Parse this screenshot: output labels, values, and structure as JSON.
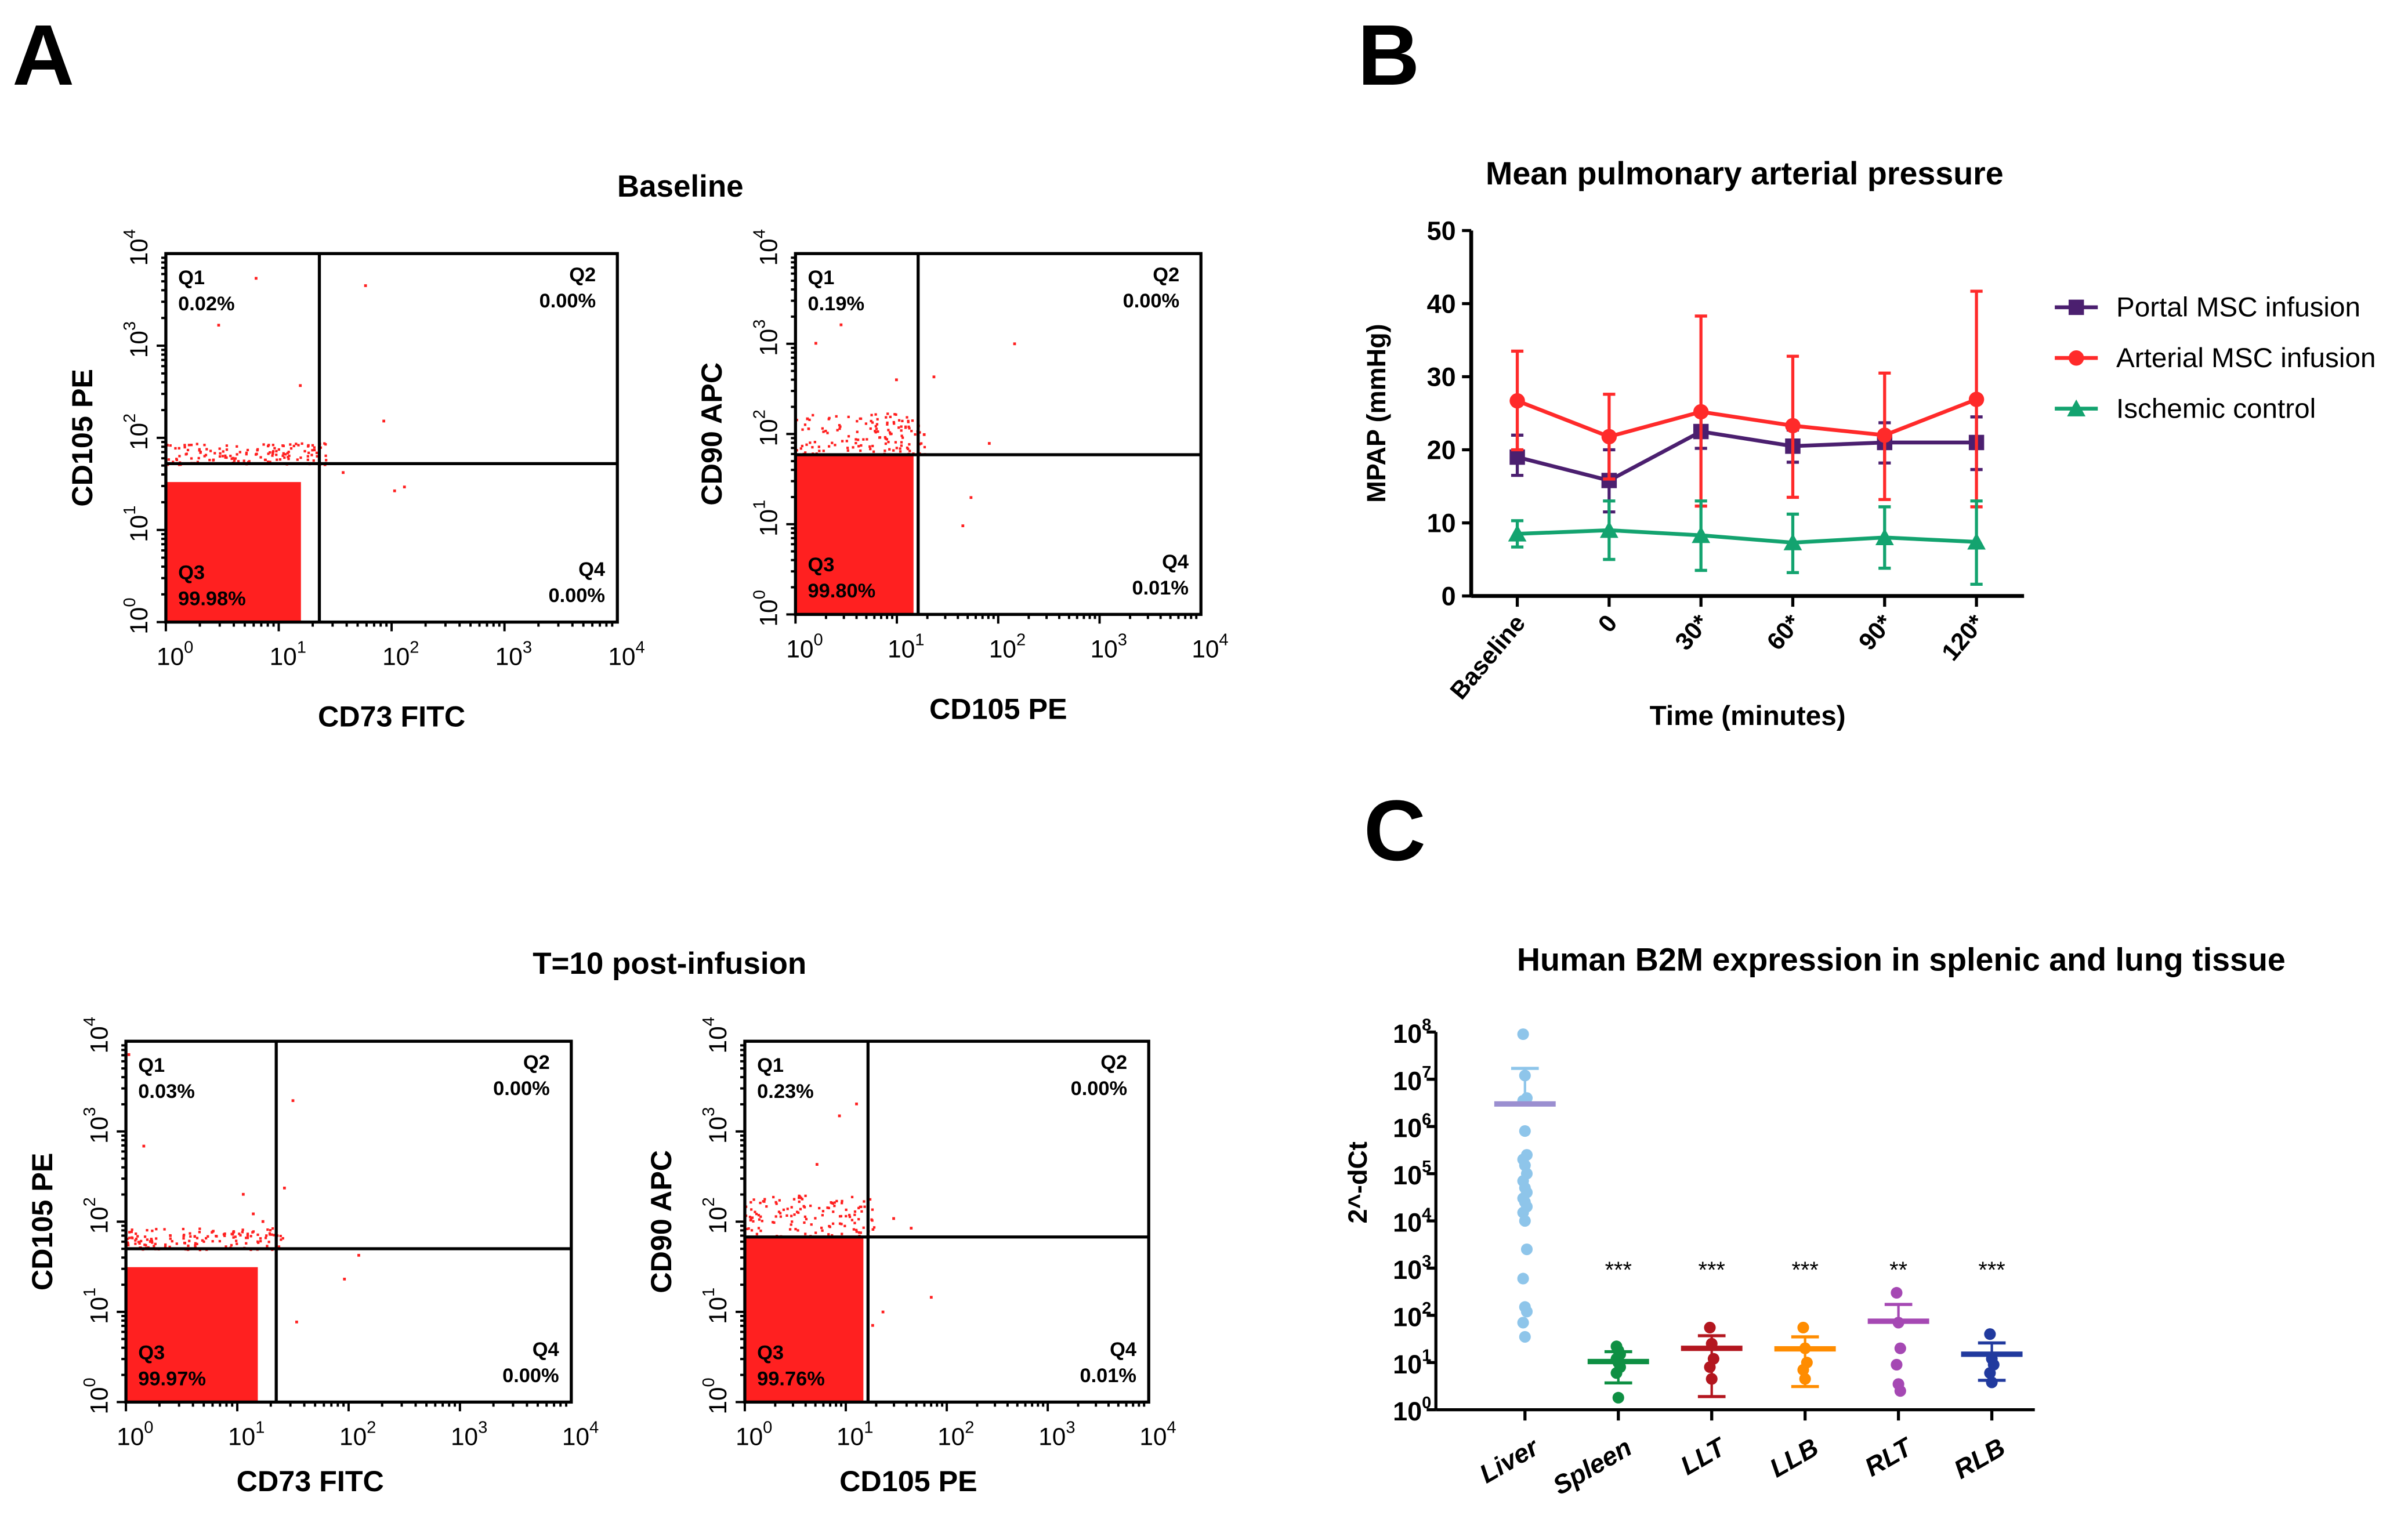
{
  "panels": {
    "A": "A",
    "B": "B",
    "C": "C"
  },
  "flow": {
    "titles": [
      "Baseline",
      "T=10 post-infusion"
    ],
    "color": "#ff2020",
    "plots": [
      {
        "xlabel": "CD73 FITC",
        "ylabel": "CD105 PE",
        "gate_log": [
          1.36,
          1.72
        ],
        "q": [
          [
            "Q1",
            "0.02%"
          ],
          [
            "Q2",
            "0.00%"
          ],
          [
            "Q3",
            "99.98%"
          ],
          [
            "Q4",
            "0.00%"
          ]
        ],
        "ticks": [
          "10",
          "0",
          "10",
          "1",
          "10",
          "2",
          "10",
          "3",
          "10",
          "4"
        ]
      },
      {
        "xlabel": "CD105 PE",
        "ylabel": "CD90 APC",
        "gate_log": [
          1.21,
          1.77
        ],
        "q": [
          [
            "Q1",
            "0.19%"
          ],
          [
            "Q2",
            "0.00%"
          ],
          [
            "Q3",
            "99.80%"
          ],
          [
            "Q4",
            "0.01%"
          ]
        ]
      },
      {
        "xlabel": "CD73 FITC",
        "ylabel": "CD105 PE",
        "gate_log": [
          1.35,
          1.7
        ],
        "q": [
          [
            "Q1",
            "0.03%"
          ],
          [
            "Q2",
            "0.00%"
          ],
          [
            "Q3",
            "99.97%"
          ],
          [
            "Q4",
            "0.00%"
          ]
        ]
      },
      {
        "xlabel": "CD105 PE",
        "ylabel": "CD90 APC",
        "gate_log": [
          1.22,
          1.83
        ],
        "q": [
          [
            "Q1",
            "0.23%"
          ],
          [
            "Q2",
            "0.00%"
          ],
          [
            "Q3",
            "99.76%"
          ],
          [
            "Q4",
            "0.01%"
          ]
        ]
      }
    ]
  },
  "chart_data": [
    {
      "type": "line",
      "title": "Mean pulmonary arterial pressure",
      "xlabel": "Time (minutes)",
      "ylabel": "MPAP (mmHg)",
      "ylim": [
        0,
        50
      ],
      "yticks": [
        "0",
        "10",
        "20",
        "30",
        "40",
        "50"
      ],
      "categories": [
        "Baseline",
        "0",
        "30*",
        "60*",
        "90*",
        "120*"
      ],
      "legend_position": "right",
      "series": [
        {
          "name": "Portal MSC infusion",
          "color": "#4b1f6f",
          "marker": "square",
          "values": [
            19,
            15.8,
            22.5,
            20.5,
            21,
            21
          ],
          "err_low": [
            16.5,
            11.5,
            20.2,
            18.3,
            18.2,
            17.3
          ],
          "err_high": [
            22,
            20,
            25,
            22.7,
            23.7,
            24.5
          ]
        },
        {
          "name": "Arterial MSC infusion",
          "color": "#ff2a2a",
          "marker": "circle",
          "values": [
            26.7,
            21.8,
            25.2,
            23.3,
            22,
            26.9
          ],
          "err_low": [
            20,
            16,
            12.3,
            13.5,
            13.2,
            12.2
          ],
          "err_high": [
            33.5,
            27.6,
            38.3,
            32.8,
            30.5,
            41.7
          ]
        },
        {
          "name": "Ischemic control",
          "color": "#13a36f",
          "marker": "triangle",
          "values": [
            8.5,
            9,
            8.3,
            7.3,
            8,
            7.4
          ],
          "err_low": [
            6.7,
            5,
            3.5,
            3.2,
            3.8,
            1.6
          ],
          "err_high": [
            10.3,
            13,
            13,
            11.2,
            12.2,
            13
          ]
        }
      ]
    },
    {
      "type": "scatter",
      "title": "Human B2M expression in splenic and lung tissue",
      "xlabel": "",
      "ylabel": "2^-dCt",
      "yscale": "log10",
      "ylim": [
        1,
        100000000
      ],
      "ytick_exponents": [
        "0",
        "1",
        "2",
        "3",
        "4",
        "5",
        "6",
        "7",
        "8"
      ],
      "ytick_base": "10",
      "categories": [
        "Liver",
        "Spleen",
        "LLT",
        "LLB",
        "RLT",
        "RLB"
      ],
      "groups": [
        {
          "name": "Liver",
          "color": "#8ec5ea",
          "mean_color": "#9b8fd0",
          "mean": 3000000,
          "err_low": null,
          "err_high": 17000000,
          "sig": "",
          "points": [
            90000000,
            12000000,
            4000000,
            3500000,
            800000,
            250000,
            200000,
            150000,
            100000,
            70000,
            50000,
            40000,
            30000,
            25000,
            20000,
            15000,
            10000,
            2500,
            600,
            150,
            120,
            70,
            35
          ]
        },
        {
          "name": "Spleen",
          "color": "#0e8f43",
          "mean_color": "#0e8f43",
          "mean": 10.5,
          "err_low": 3.7,
          "err_high": 17,
          "sig": "***",
          "points": [
            22,
            18,
            15,
            12,
            10,
            8,
            6,
            1.8
          ]
        },
        {
          "name": "LLT",
          "color": "#b3161f",
          "mean_color": "#b3161f",
          "mean": 20,
          "err_low": 1.9,
          "err_high": 37,
          "sig": "***",
          "points": [
            55,
            25,
            12,
            8,
            4.5
          ]
        },
        {
          "name": "LLB",
          "color": "#ff8c00",
          "mean_color": "#ff8c00",
          "mean": 19.5,
          "err_low": 3.1,
          "err_high": 35,
          "sig": "***",
          "points": [
            55,
            20,
            10,
            7,
            4.5
          ]
        },
        {
          "name": "RLT",
          "color": "#a548b3",
          "mean_color": "#a548b3",
          "mean": 75,
          "err_low": null,
          "err_high": 170,
          "sig": "**",
          "points": [
            300,
            70,
            20,
            9,
            3.5,
            2.5
          ]
        },
        {
          "name": "RLB",
          "color": "#213a9e",
          "mean_color": "#213a9e",
          "mean": 15,
          "err_low": 4.2,
          "err_high": 26,
          "sig": "***",
          "points": [
            40,
            12,
            9,
            6,
            3.8
          ]
        }
      ]
    }
  ]
}
